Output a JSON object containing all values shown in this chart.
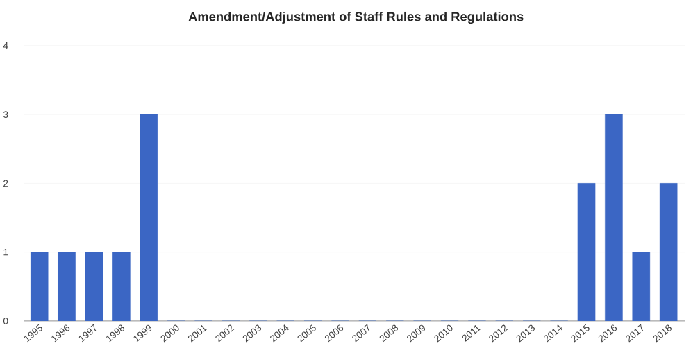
{
  "chart_data": {
    "type": "bar",
    "title": "Amendment/Adjustment of Staff Rules and Regulations",
    "categories": [
      "1995",
      "1996",
      "1997",
      "1998",
      "1999",
      "2000",
      "2001",
      "2002",
      "2003",
      "2004",
      "2005",
      "2006",
      "2007",
      "2008",
      "2009",
      "2010",
      "2011",
      "2012",
      "2013",
      "2014",
      "2015",
      "2016",
      "2017",
      "2018"
    ],
    "values": [
      1,
      1,
      1,
      1,
      3,
      0,
      0,
      0,
      0,
      0,
      0,
      0,
      0,
      0,
      0,
      0,
      0,
      0,
      0,
      0,
      2,
      3,
      1,
      2
    ],
    "color": "#3b66c4",
    "ylim": [
      0,
      4
    ],
    "yticks": [
      0,
      1,
      2,
      3,
      4
    ],
    "grid": "y"
  }
}
